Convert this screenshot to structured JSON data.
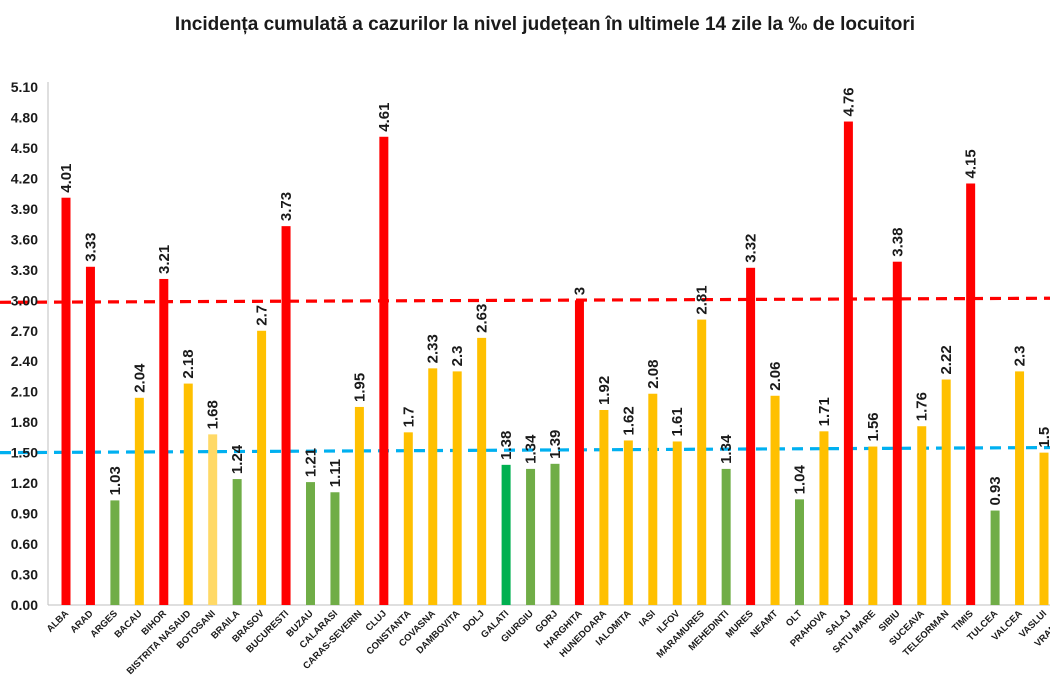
{
  "chart_data": {
    "type": "bar",
    "title": "Incidența cumulată a cazurilor la nivel județean în ultimele 14 zile la ‰ de locuitori",
    "xlabel": "",
    "ylabel": "",
    "ylim": [
      0,
      5.1
    ],
    "yticks": [
      "0.00",
      "0.30",
      "0.60",
      "0.90",
      "1.20",
      "1.50",
      "1.80",
      "2.10",
      "2.40",
      "2.70",
      "3.00",
      "3.30",
      "3.60",
      "3.90",
      "4.20",
      "4.50",
      "4.80",
      "5.10"
    ],
    "categories": [
      "ALBA",
      "ARAD",
      "ARGES",
      "BACAU",
      "BIHOR",
      "BISTRITA NASAUD",
      "BOTOSANI",
      "BRAILA",
      "BRASOV",
      "BUCURESTI",
      "BUZAU",
      "CALARASI",
      "CARAS-SEVERIN",
      "CLUJ",
      "CONSTANTA",
      "COVASNA",
      "DAMBOVITA",
      "DOLJ",
      "GALATI",
      "GIURGIU",
      "GORJ",
      "HARGHITA",
      "HUNEDOARA",
      "IALOMITA",
      "IASI",
      "ILFOV",
      "MARAMURES",
      "MEHEDINTI",
      "MURES",
      "NEAMT",
      "OLT",
      "PRAHOVA",
      "SALAJ",
      "SATU MARE",
      "SIBIU",
      "SUCEAVA",
      "TELEORMAN",
      "TIMIS",
      "TULCEA",
      "VALCEA",
      "VASLUI",
      "VRANCEA"
    ],
    "values": [
      4.01,
      3.33,
      1.03,
      2.04,
      3.21,
      2.18,
      1.68,
      1.24,
      2.7,
      3.73,
      1.21,
      1.11,
      1.95,
      4.61,
      1.7,
      2.33,
      2.3,
      2.63,
      1.38,
      1.34,
      1.39,
      3,
      1.92,
      1.62,
      2.08,
      1.61,
      2.81,
      1.34,
      3.32,
      2.06,
      1.04,
      1.71,
      4.76,
      1.56,
      3.38,
      1.76,
      2.22,
      4.15,
      0.93,
      2.3,
      1.5,
      null
    ],
    "labels": [
      "4.01",
      "3.33",
      "1.03",
      "2.04",
      "3.21",
      "2.18",
      "1.68",
      "1.24",
      "2.7",
      "3.73",
      "1.21",
      "1.11",
      "1.95",
      "4.61",
      "1.7",
      "2.33",
      "2.3",
      "2.63",
      "1.38",
      "1.34",
      "1.39",
      "3",
      "1.92",
      "1.62",
      "2.08",
      "1.61",
      "2.81",
      "1.34",
      "3.32",
      "2.06",
      "1.04",
      "1.71",
      "4.76",
      "1.56",
      "3.38",
      "1.76",
      "2.22",
      "4.15",
      "0.93",
      "2.3",
      "1.5",
      ""
    ],
    "bar_colors": [
      "#ff0000",
      "#ff0000",
      "#70ad47",
      "#ffc000",
      "#ff0000",
      "#ffc000",
      "#ffd966",
      "#70ad47",
      "#ffc000",
      "#ff0000",
      "#70ad47",
      "#70ad47",
      "#ffc000",
      "#ff0000",
      "#ffc000",
      "#ffc000",
      "#ffc000",
      "#ffc000",
      "#00b050",
      "#70ad47",
      "#70ad47",
      "#ff0000",
      "#ffc000",
      "#ffc000",
      "#ffc000",
      "#ffc000",
      "#ffc000",
      "#70ad47",
      "#ff0000",
      "#ffc000",
      "#70ad47",
      "#ffc000",
      "#ff0000",
      "#ffc000",
      "#ff0000",
      "#ffc000",
      "#ffc000",
      "#ff0000",
      "#70ad47",
      "#ffc000",
      "#ffc000",
      "#ffc000"
    ],
    "threshold_lines": [
      {
        "start": 2.98,
        "end": 3.02,
        "color": "#ff0000"
      },
      {
        "start": 1.5,
        "end": 1.55,
        "color": "#00b0f0"
      }
    ],
    "grid": false,
    "legend": "none"
  }
}
